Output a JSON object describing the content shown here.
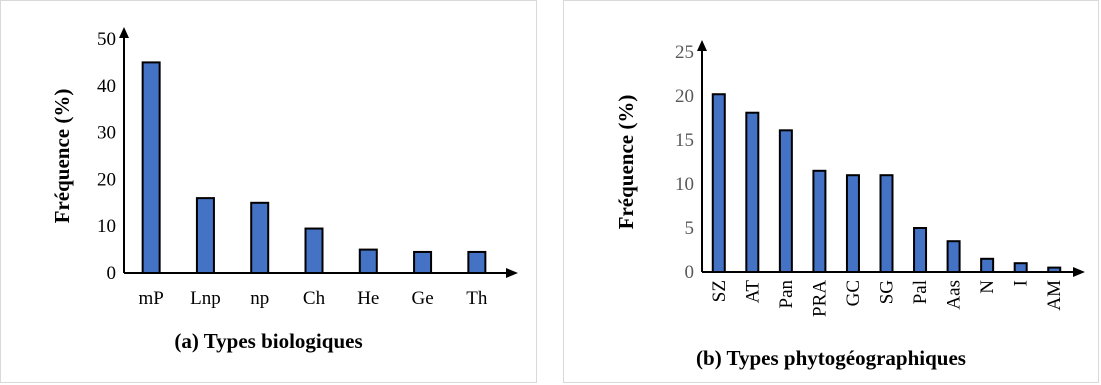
{
  "chart_data": [
    {
      "type": "bar",
      "caption": "(a) Types biologiques",
      "ylabel": "Fréquence (%)",
      "xlabel": "",
      "categories": [
        "mP",
        "Lnp",
        "np",
        "Ch",
        "He",
        "Ge",
        "Th"
      ],
      "values": [
        45,
        16,
        15,
        9.5,
        5,
        4.5,
        4.5
      ],
      "ylim": [
        0,
        50
      ],
      "yticks": [
        0,
        10,
        20,
        30,
        40,
        50
      ],
      "grid": false,
      "bar_color": "#4472c4",
      "bar_edge_color": "#000000",
      "tick_label_color": "#000000"
    },
    {
      "type": "bar",
      "caption": "(b) Types phytogéographiques",
      "ylabel": "Fréquence (%)",
      "xlabel": "",
      "categories": [
        "SZ",
        "AT",
        "Pan",
        "PRA",
        "GC",
        "SG",
        "Pal",
        "Aas",
        "N",
        "I",
        "AM"
      ],
      "values": [
        20.2,
        18.1,
        16.1,
        11.5,
        11,
        11,
        5,
        3.5,
        1.5,
        1,
        0.5
      ],
      "ylim": [
        0,
        25
      ],
      "yticks": [
        0,
        5,
        10,
        15,
        20,
        25
      ],
      "grid": false,
      "bar_color": "#4472c4",
      "bar_edge_color": "#000000",
      "tick_label_color": "#595959"
    }
  ]
}
